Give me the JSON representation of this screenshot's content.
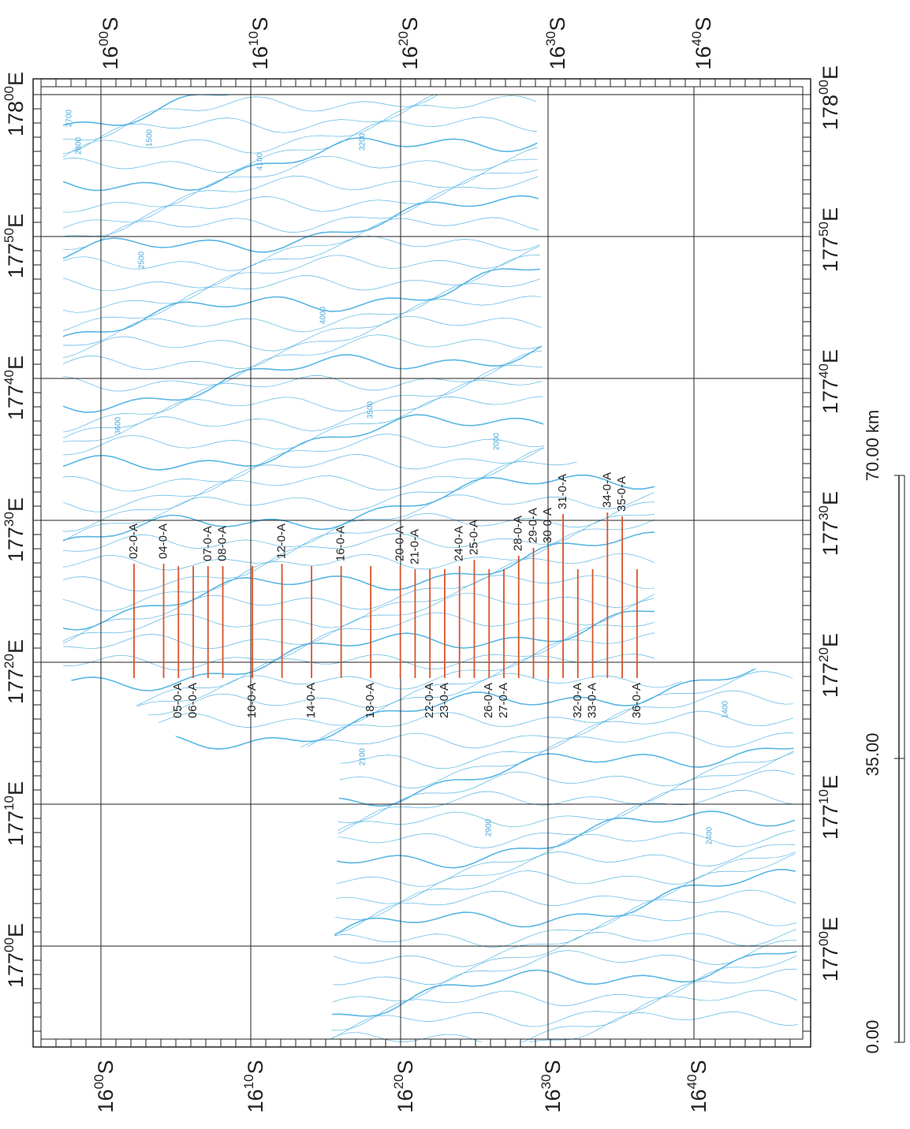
{
  "map": {
    "lat_labels": [
      {
        "deg": "16",
        "min": "00",
        "hem": "S"
      },
      {
        "deg": "16",
        "min": "10",
        "hem": "S"
      },
      {
        "deg": "16",
        "min": "20",
        "hem": "S"
      },
      {
        "deg": "16",
        "min": "30",
        "hem": "S"
      },
      {
        "deg": "16",
        "min": "40",
        "hem": "S"
      }
    ],
    "lon_labels": [
      {
        "deg": "178",
        "min": "00",
        "hem": "E"
      },
      {
        "deg": "177",
        "min": "50",
        "hem": "E"
      },
      {
        "deg": "177",
        "min": "40",
        "hem": "E"
      },
      {
        "deg": "177",
        "min": "30",
        "hem": "E"
      },
      {
        "deg": "177",
        "min": "20",
        "hem": "E"
      },
      {
        "deg": "177",
        "min": "10",
        "hem": "E"
      },
      {
        "deg": "177",
        "min": "00",
        "hem": "E"
      }
    ],
    "tracks": [
      "02-0-A",
      "04-0-A",
      "05-0-A",
      "06-0-A",
      "07-0-A",
      "08-0-A",
      "10-0-A",
      "12-0-A",
      "14-0-A",
      "16-0-A",
      "18-0-A",
      "20-0-A",
      "21-0-A",
      "22-0-A",
      "23-0-A",
      "24-0-A",
      "25-0-A",
      "26-0-A",
      "27-0-A",
      "28-0-A",
      "29-0-A",
      "30-0-A",
      "31-0-A",
      "32-0-A",
      "33-0-A",
      "34-0-A",
      "35-0-A",
      "36-0-A"
    ],
    "contour_labels": [
      "2700",
      "2800",
      "1500",
      "4100",
      "3200",
      "2500",
      "3600",
      "4000",
      "3500",
      "2000",
      "2100",
      "2900",
      "1400",
      "2400"
    ],
    "scale_bar": {
      "labels": [
        "0.00",
        "35.00",
        "70.00 km"
      ]
    }
  }
}
